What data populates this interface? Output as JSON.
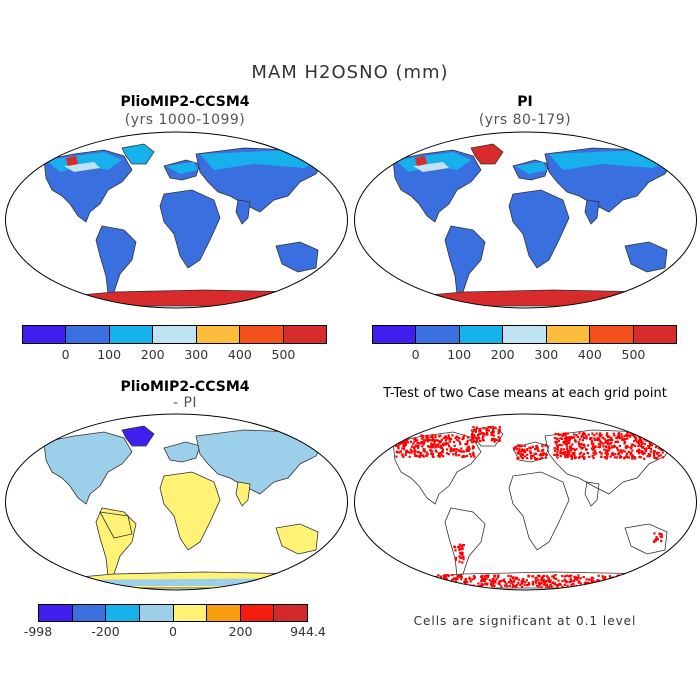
{
  "figure": {
    "title": "MAM H2OSNO (mm)"
  },
  "panels": {
    "top_left": {
      "title": "PlioMIP2-CCSM4",
      "subtitle": "(yrs 1000-1099)"
    },
    "top_right": {
      "title": "PI",
      "subtitle": "(yrs 80-179)"
    },
    "bottom_left": {
      "title": "PlioMIP2-CCSM4",
      "subtitle": "- PI"
    },
    "bottom_right": {
      "title": "T-Test of two Case means at each grid point",
      "note": "Cells are significant at 0.1 level"
    }
  },
  "colorbars": {
    "absolute": {
      "colors": [
        "#3f1ef0",
        "#3a6fe0",
        "#15b2ec",
        "#bfe3f2",
        "#fbbd3b",
        "#f5521b",
        "#d82b2b"
      ],
      "ticks": [
        "0",
        "100",
        "200",
        "300",
        "400",
        "500"
      ]
    },
    "difference": {
      "colors": [
        "#3f1ef0",
        "#3a6fe0",
        "#15b2ec",
        "#9ccfe9",
        "#fff275",
        "#f89d0e",
        "#f51e0e",
        "#d22a2a"
      ],
      "ticks": [
        "-998",
        "-200",
        "0",
        "200",
        "944.4"
      ]
    }
  },
  "map_colors": {
    "ocean": "#ffffff",
    "land_blue": "#3a6fe0",
    "snow_light": "#15b2ec",
    "snow_pale": "#bfe3f2",
    "antarctic_red": "#d82b2b",
    "diff_yellow": "#fff275",
    "diff_pale_blue": "#9ccfe9",
    "diff_blue": "#3f1ef0",
    "significant": "#ff0000"
  }
}
